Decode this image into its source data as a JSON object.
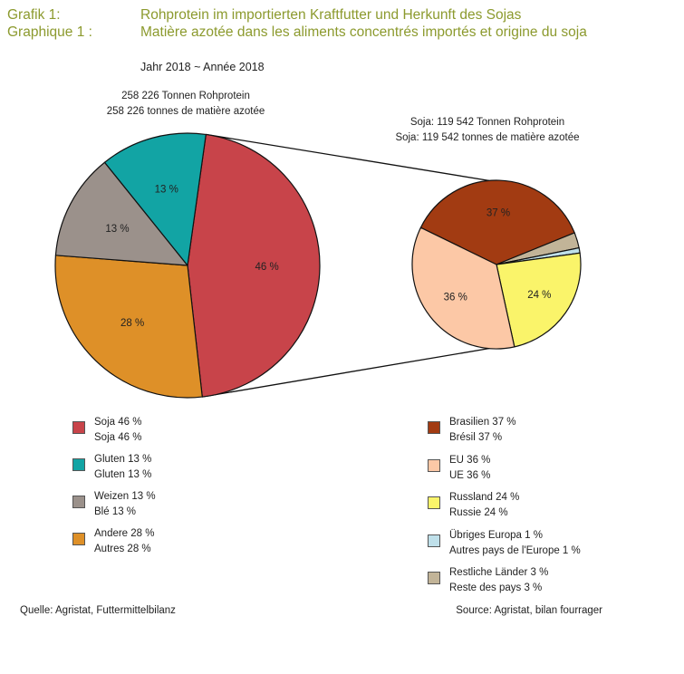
{
  "header": {
    "label_de": "Grafik 1:",
    "label_fr": "Graphique 1 :",
    "title_de": "Rohprotein im importierten Kraftfutter und Herkunft des Sojas",
    "title_fr": "Matière azotée dans les aliments concentrés importés et origine du soja",
    "year": "Jahr 2018  ~  Année 2018"
  },
  "left_note": {
    "de": "258 226 Tonnen Rohprotein",
    "fr": "258 226 tonnes de matière azotée"
  },
  "right_note": {
    "de": "Soja: 119 542 Tonnen Rohprotein",
    "fr": "Soja: 119 542 tonnes de matière azotée"
  },
  "chart_data": [
    {
      "type": "pie",
      "total": "258 226",
      "slices": [
        {
          "value": 46,
          "label": "46 %",
          "legend_de": "Soja 46 %",
          "legend_fr": "Soja 46 %",
          "color": "#c8444a"
        },
        {
          "value": 28,
          "label": "28 %",
          "legend_de": "Andere 28 %",
          "legend_fr": "Autres 28 %",
          "color": "#de9028"
        },
        {
          "value": 13,
          "label": "13 %",
          "legend_de": "Weizen 13 %",
          "legend_fr": "Blé 13 %",
          "color": "#9b918b"
        },
        {
          "value": 13,
          "label": "13 %",
          "legend_de": "Gluten 13 %",
          "legend_fr": "Gluten 13 %",
          "color": "#12a4a4"
        }
      ],
      "legend_order": [
        0,
        3,
        2,
        1
      ]
    },
    {
      "type": "pie",
      "total": "119 542",
      "slices": [
        {
          "value": 37,
          "label": "37 %",
          "legend_de": "Brasilien 37 %",
          "legend_fr": "Brésil 37 %",
          "color": "#a23b12"
        },
        {
          "value": 3,
          "label": "",
          "legend_de": "Restliche Länder 3 %",
          "legend_fr": "Reste des pays 3 %",
          "color": "#c2b498"
        },
        {
          "value": 1,
          "label": "",
          "legend_de": "Übriges Europa 1 %",
          "legend_fr": "Autres pays de l'Europe 1 %",
          "color": "#bfe0ea"
        },
        {
          "value": 24,
          "label": "24 %",
          "legend_de": "Russland 24 %",
          "legend_fr": "Russie 24 %",
          "color": "#faf46a"
        },
        {
          "value": 36,
          "label": "36 %",
          "legend_de": "EU 36 %",
          "legend_fr": "UE 36 %",
          "color": "#fcc8a6"
        }
      ],
      "legend_order": [
        0,
        4,
        3,
        2,
        1
      ]
    }
  ],
  "footer": {
    "source_de": "Quelle: Agristat, Futtermittelbilanz",
    "source_fr": "Source: Agristat, bilan fourrager"
  }
}
